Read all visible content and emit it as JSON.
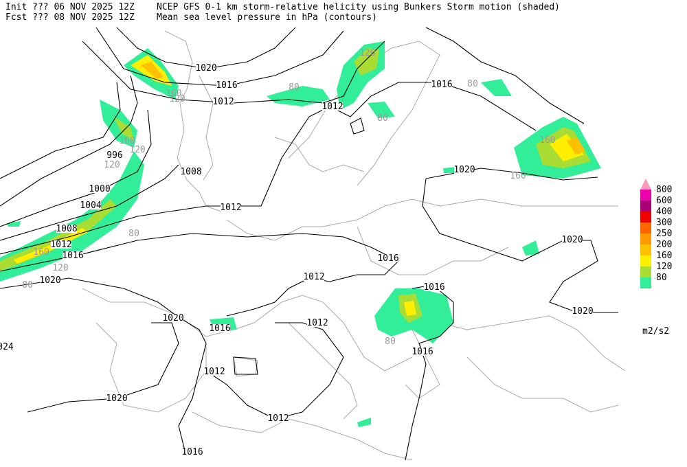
{
  "header": {
    "init": "Init  ??? 06 NOV 2025 12Z",
    "title": "NCEP GFS 0-1 km storm-relative helicity using Bunkers Storm motion (shaded)",
    "fcst": "Fcst ??? 08 NOV 2025 12Z",
    "subtitle": "Mean sea level pressure in hPa (contours)"
  },
  "legend": {
    "levels": [
      80,
      120,
      160,
      200,
      250,
      300,
      400,
      600,
      800
    ],
    "colors": [
      "#33ee99",
      "#aadd33",
      "#ffee00",
      "#ffc000",
      "#ff9900",
      "#ff6600",
      "#ee0000",
      "#aa0077",
      "#ee00aa",
      "#ff99bb"
    ],
    "unit": "m2/s2"
  },
  "contour_labels": [
    "1020",
    "1016",
    "1012",
    "1012",
    "1016",
    "1020",
    "996",
    "1008",
    "1000",
    "1004",
    "1012",
    "1008",
    "1012",
    "1016",
    "1020",
    "1016",
    "1020",
    "1012",
    "1016",
    "1020",
    "1016",
    "1012",
    "1020",
    "1016",
    "1012",
    "1020",
    "1012",
    "1016",
    "024"
  ],
  "shading_labels": [
    "160",
    "120",
    "120",
    "80",
    "160",
    "120",
    "80",
    "120",
    "80",
    "80",
    "80",
    "160",
    "160",
    "80",
    "160",
    "120"
  ]
}
